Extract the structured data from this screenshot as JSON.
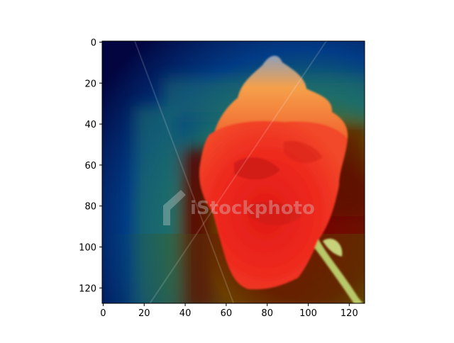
{
  "chart_data": {
    "type": "heatmap",
    "title": "",
    "xlabel": "",
    "ylabel": "",
    "image_size": [
      128,
      128
    ],
    "xlim": [
      -0.5,
      127.5
    ],
    "ylim": [
      127.5,
      -0.5
    ],
    "x_ticks": [
      0,
      20,
      40,
      60,
      80,
      100,
      120
    ],
    "y_ticks": [
      0,
      20,
      40,
      60,
      80,
      100,
      120
    ],
    "grid": false,
    "colormap": "jet",
    "overlay": {
      "opacity": 0.55,
      "description_in_pixels": "heatmap overlay on a photo of a red carnation",
      "low_region": "upper-left corner",
      "high_region": "center and lower-right",
      "watermark_text": "iStockphoto"
    }
  },
  "colors": {
    "axis": "#000000",
    "background": "#ffffff",
    "flower_red": "#ee2a1e",
    "flower_orange": "#f7a040",
    "stem_green": "#b9c868"
  }
}
